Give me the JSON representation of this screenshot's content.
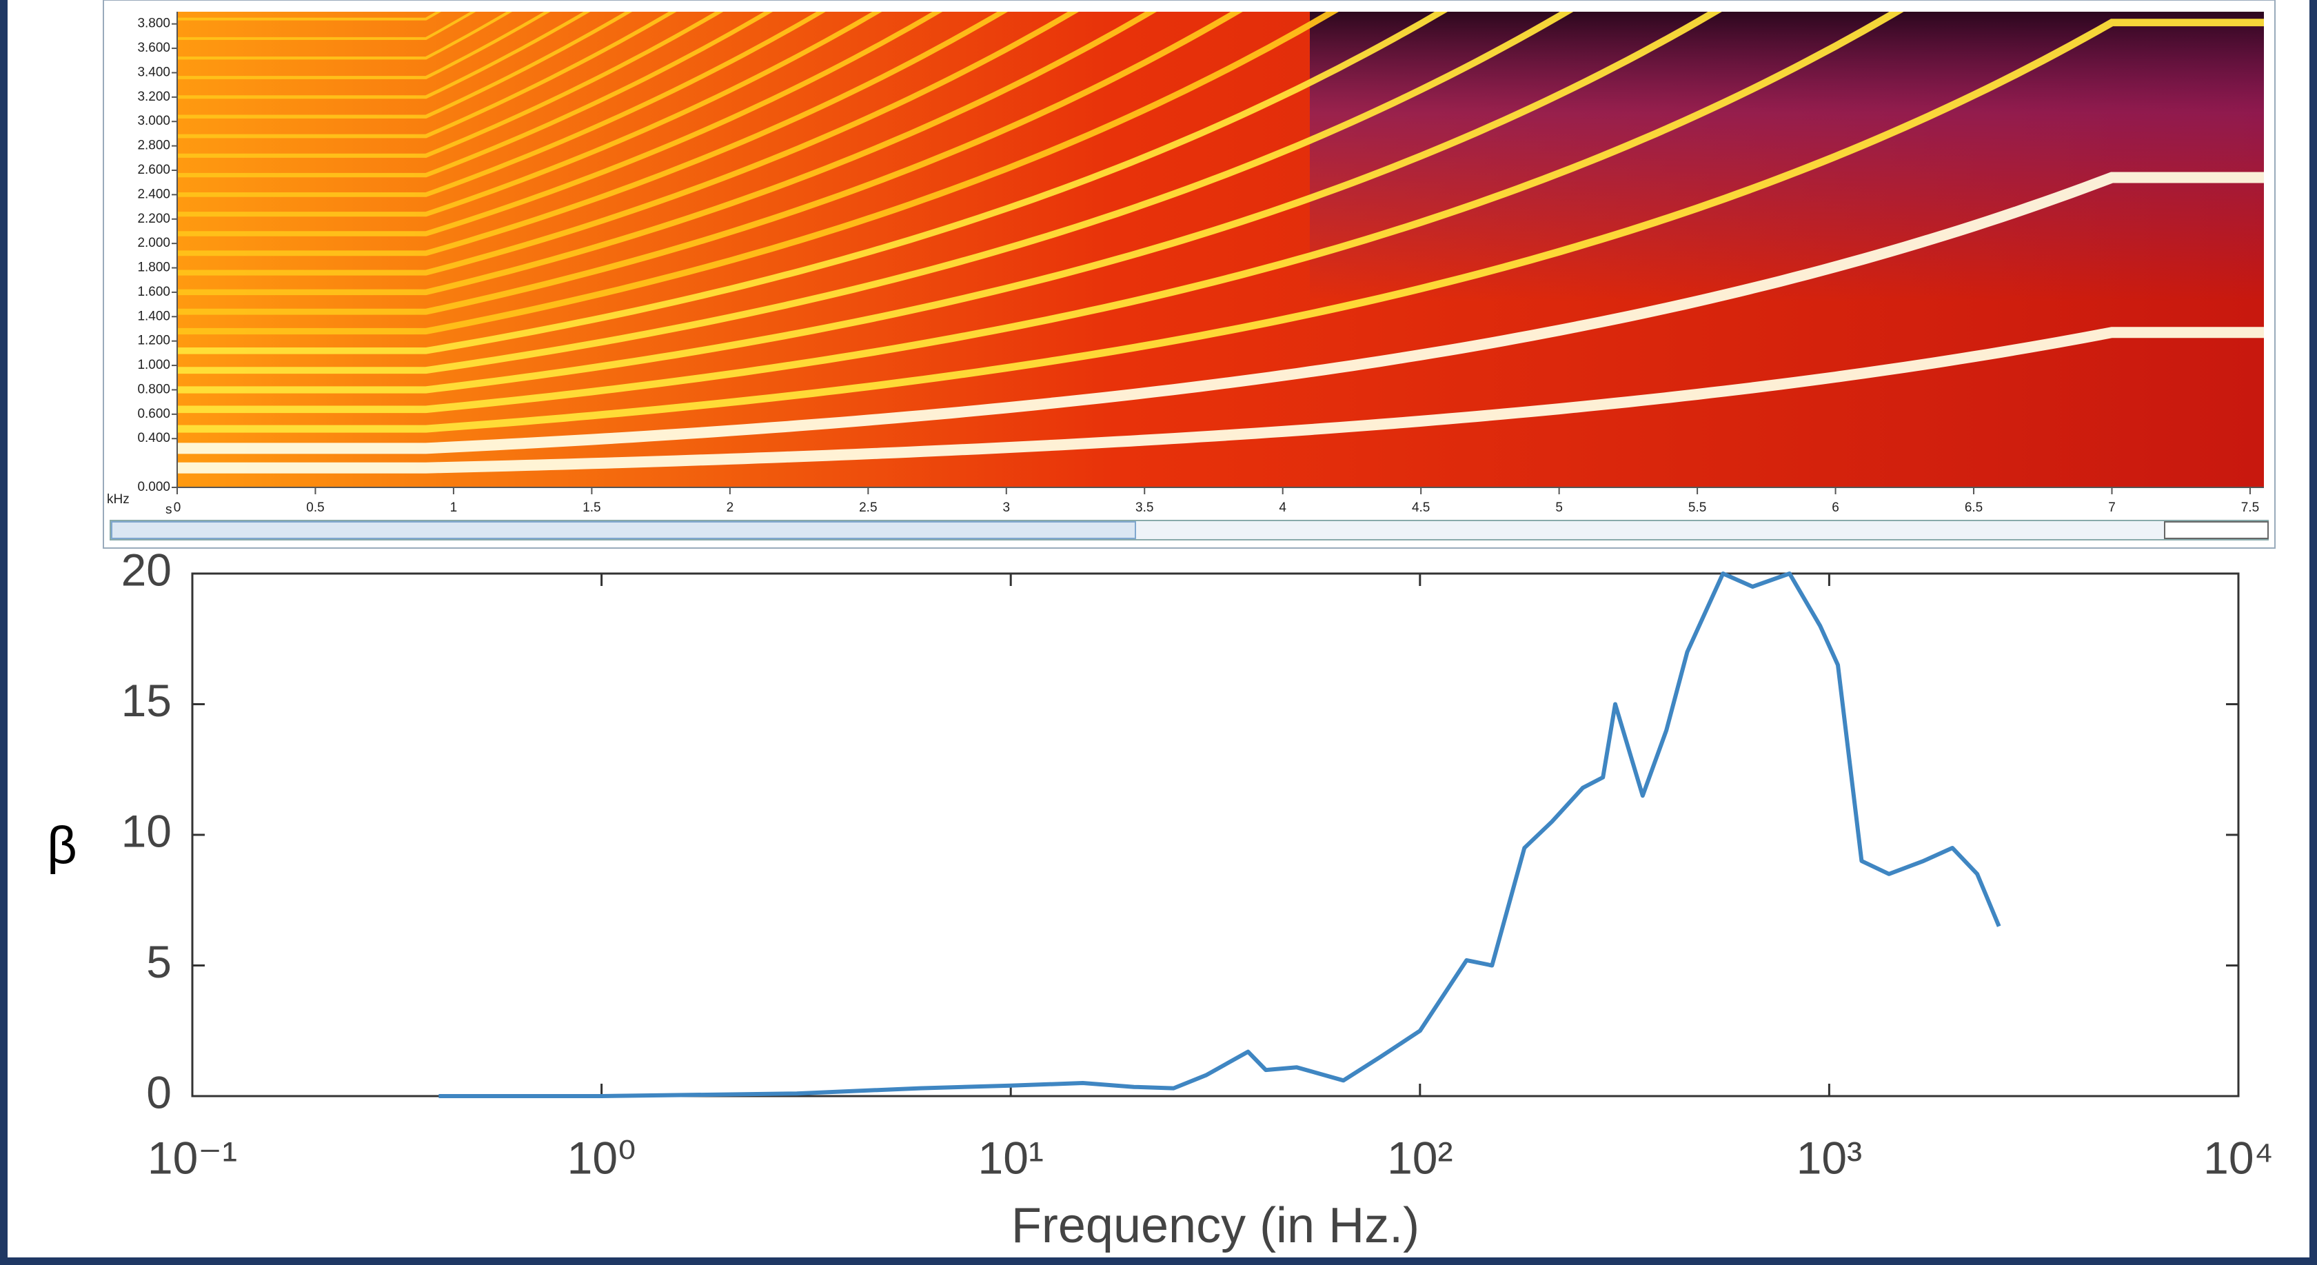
{
  "chart_data": [
    {
      "type": "spectrogram",
      "y_unit": "kHz",
      "x_unit": "s",
      "xlim": [
        0,
        7.55
      ],
      "ylim": [
        0,
        3.9
      ],
      "xticks": [
        0,
        0.5,
        1,
        1.5,
        2,
        2.5,
        3,
        3.5,
        4,
        4.5,
        5,
        5.5,
        6,
        6.5,
        7,
        7.5
      ],
      "yticks": [
        {
          "value": 0,
          "label": "0.000"
        },
        {
          "value": 0.4,
          "label": "0.400"
        },
        {
          "value": 0.6,
          "label": "0.600"
        },
        {
          "value": 0.8,
          "label": "0.800"
        },
        {
          "value": 1.0,
          "label": "1.000"
        },
        {
          "value": 1.2,
          "label": "1.200"
        },
        {
          "value": 1.4,
          "label": "1.400"
        },
        {
          "value": 1.6,
          "label": "1.600"
        },
        {
          "value": 1.8,
          "label": "1.800"
        },
        {
          "value": 2.0,
          "label": "2.000"
        },
        {
          "value": 2.2,
          "label": "2.200"
        },
        {
          "value": 2.4,
          "label": "2.400"
        },
        {
          "value": 2.6,
          "label": "2.600"
        },
        {
          "value": 2.8,
          "label": "2.800"
        },
        {
          "value": 3.0,
          "label": "3.000"
        },
        {
          "value": 3.2,
          "label": "3.200"
        },
        {
          "value": 3.4,
          "label": "3.400"
        },
        {
          "value": 3.6,
          "label": "3.600"
        },
        {
          "value": 3.8,
          "label": "3.800"
        }
      ]
    },
    {
      "type": "line",
      "xlabel": "Frequency (in Hz.)",
      "ylabel": "β",
      "xscale": "log",
      "xlim": [
        0.1,
        10000
      ],
      "ylim": [
        0,
        20
      ],
      "xticks": [
        {
          "value": 0.1,
          "label": "10⁻¹"
        },
        {
          "value": 1,
          "label": "10⁰"
        },
        {
          "value": 10,
          "label": "10¹"
        },
        {
          "value": 100,
          "label": "10²"
        },
        {
          "value": 1000,
          "label": "10³"
        },
        {
          "value": 10000,
          "label": "10⁴"
        }
      ],
      "yticks": [
        0,
        5,
        10,
        15,
        20
      ],
      "x": [
        0.4,
        1,
        3,
        6,
        10,
        15,
        20,
        25,
        30,
        38,
        42,
        50,
        65,
        80,
        100,
        130,
        150,
        180,
        210,
        250,
        280,
        300,
        350,
        400,
        450,
        550,
        650,
        800,
        950,
        1050,
        1200,
        1400,
        1700,
        2000,
        2300,
        2600
      ],
      "series": [
        {
          "color": "#3f86c2",
          "values": [
            0,
            0,
            0.1,
            0.3,
            0.4,
            0.5,
            0.35,
            0.3,
            0.8,
            1.7,
            1.0,
            1.1,
            0.6,
            1.5,
            2.5,
            5.2,
            5,
            9.5,
            10.5,
            11.8,
            12.2,
            15,
            11.5,
            14,
            17,
            20,
            19.5,
            20,
            18,
            16.5,
            9,
            8.5,
            9,
            9.5,
            8.5,
            6.5
          ]
        }
      ]
    }
  ]
}
